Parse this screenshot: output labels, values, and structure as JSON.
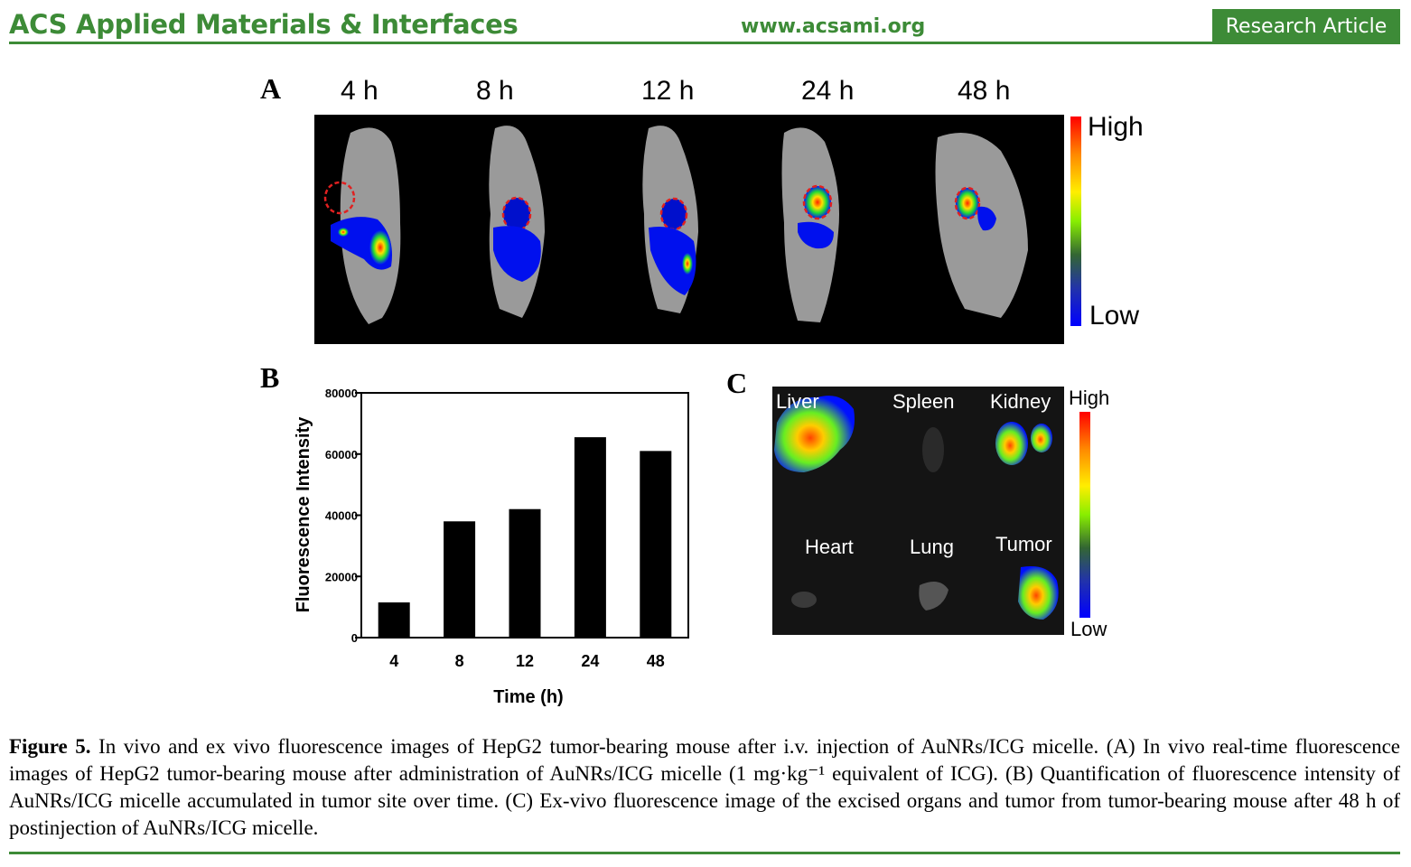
{
  "header": {
    "journal": "ACS Applied Materials & Interfaces",
    "url": "www.acsami.org",
    "article_type": "Research Article"
  },
  "panel_a": {
    "letter": "A",
    "time_labels": [
      "4 h",
      "8 h",
      "12 h",
      "24 h",
      "48 h"
    ],
    "colorbar_high": "High",
    "colorbar_low": "Low"
  },
  "panel_b": {
    "letter": "B"
  },
  "panel_c": {
    "letter": "C",
    "organs": [
      "Liver",
      "Spleen",
      "Kidney",
      "Heart",
      "Lung",
      "Tumor"
    ],
    "colorbar_high": "High",
    "colorbar_low": "Low"
  },
  "chart_data": {
    "type": "bar",
    "categories": [
      "4",
      "8",
      "12",
      "24",
      "48"
    ],
    "values": [
      11500,
      38000,
      42000,
      65500,
      61000
    ],
    "xlabel": "Time (h)",
    "ylabel": "Fluorescence Intensity",
    "ylim": [
      0,
      80000
    ],
    "yticks": [
      "0",
      "20000",
      "40000",
      "60000",
      "80000"
    ],
    "bar_color": "#000000"
  },
  "caption": {
    "label": "Figure 5.",
    "text": "In vivo and ex vivo fluorescence images of HepG2 tumor-bearing mouse after i.v. injection of AuNRs/ICG micelle. (A) In vivo real-time fluorescence images of HepG2 tumor-bearing mouse after administration of AuNRs/ICG micelle (1 mg·kg⁻¹ equivalent of ICG). (B) Quantification of fluorescence intensity of AuNRs/ICG micelle accumulated in tumor site over time. (C) Ex-vivo fluorescence image of the excised organs and tumor from tumor-bearing mouse after 48 h of postinjection of AuNRs/ICG micelle."
  },
  "colors": {
    "accent": "#3d8b37"
  }
}
